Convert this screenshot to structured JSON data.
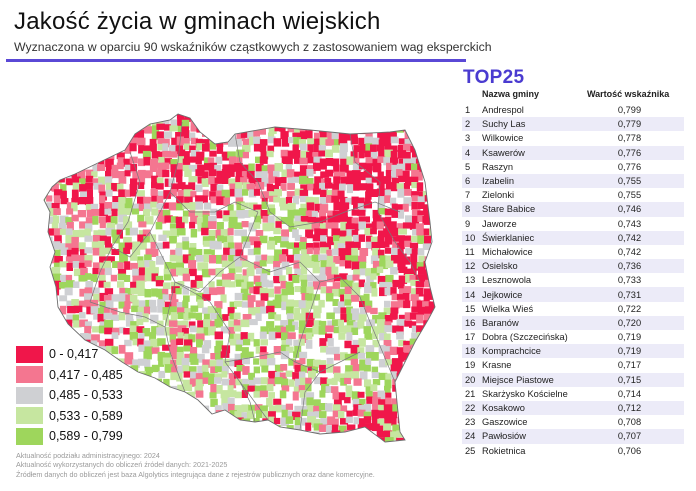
{
  "header": {
    "title": "Jakość życia w gminach wiejskich",
    "subtitle": "Wyznaczona w oparciu 90 wskaźników cząstkowych z zastosowaniem wag eksperckich",
    "rule_color": "#5a48d6"
  },
  "legend": {
    "items": [
      {
        "label": "0 - 0,417",
        "color": "#f0164a"
      },
      {
        "label": "0,417 - 0,485",
        "color": "#f47690"
      },
      {
        "label": "0,485 - 0,533",
        "color": "#cfd0d3"
      },
      {
        "label": "0,533 - 0,589",
        "color": "#c6e6a0"
      },
      {
        "label": "0,589 - 0,799",
        "color": "#9ed65c"
      }
    ]
  },
  "notes": [
    "Aktualność podziału administracyjnego: 2024",
    "Aktualność wykorzystanych do obliczeń źródeł danych: 2021-2025",
    "Źródłem danych do obliczeń jest baza Algolytics integrująca dane z rejestrów publicznych oraz dane komercyjne."
  ],
  "top": {
    "title": "TOP25",
    "col_name": "Nazwa gminy",
    "col_value": "Wartość wskaźnika",
    "rows": [
      {
        "rank": "1",
        "name": "Andrespol",
        "value": "0,799"
      },
      {
        "rank": "2",
        "name": "Suchy Las",
        "value": "0,779"
      },
      {
        "rank": "3",
        "name": "Wilkowice",
        "value": "0,778"
      },
      {
        "rank": "4",
        "name": "Ksawerów",
        "value": "0,776"
      },
      {
        "rank": "5",
        "name": "Raszyn",
        "value": "0,776"
      },
      {
        "rank": "6",
        "name": "Izabelin",
        "value": "0,755"
      },
      {
        "rank": "7",
        "name": "Zielonki",
        "value": "0,755"
      },
      {
        "rank": "8",
        "name": "Stare Babice",
        "value": "0,746"
      },
      {
        "rank": "9",
        "name": "Jaworze",
        "value": "0,743"
      },
      {
        "rank": "10",
        "name": "Świerklaniec",
        "value": "0,742"
      },
      {
        "rank": "11",
        "name": "Michałowice",
        "value": "0,742"
      },
      {
        "rank": "12",
        "name": "Osielsko",
        "value": "0,736"
      },
      {
        "rank": "13",
        "name": "Lesznowola",
        "value": "0,733"
      },
      {
        "rank": "14",
        "name": "Jejkowice",
        "value": "0,731"
      },
      {
        "rank": "15",
        "name": "Wielka Wieś",
        "value": "0,722"
      },
      {
        "rank": "16",
        "name": "Baranów",
        "value": "0,720"
      },
      {
        "rank": "17",
        "name": "Dobra (Szczecińska)",
        "value": "0,719"
      },
      {
        "rank": "18",
        "name": "Komprachcice",
        "value": "0,719"
      },
      {
        "rank": "19",
        "name": "Krasne",
        "value": "0,717"
      },
      {
        "rank": "20",
        "name": "Miejsce Piastowe",
        "value": "0,715"
      },
      {
        "rank": "21",
        "name": "Skarżysko Kościelne",
        "value": "0,714"
      },
      {
        "rank": "22",
        "name": "Kosakowo",
        "value": "0,712"
      },
      {
        "rank": "23",
        "name": "Gaszowice",
        "value": "0,708"
      },
      {
        "rank": "24",
        "name": "Pawłosiów",
        "value": "0,707"
      },
      {
        "rank": "25",
        "name": "Rokietnica",
        "value": "0,706"
      }
    ]
  },
  "chart_data": [
    {
      "type": "heatmap",
      "title": "Jakość życia w gminach wiejskich",
      "subtitle": "Wyznaczona w oparciu 90 wskaźników cząstkowych z zastosowaniem wag eksperckich",
      "description": "Choropleth map of rural municipalities (gminy wiejskie) in Poland; white = non-rural gminy",
      "classes": [
        {
          "range": [
            0,
            0.417
          ],
          "label": "0 - 0,417",
          "color": "#f0164a"
        },
        {
          "range": [
            0.417,
            0.485
          ],
          "label": "0,417 - 0,485",
          "color": "#f47690"
        },
        {
          "range": [
            0.485,
            0.533
          ],
          "label": "0,485 - 0,533",
          "color": "#cfd0d3"
        },
        {
          "range": [
            0.533,
            0.589
          ],
          "label": "0,533 - 0,589",
          "color": "#c6e6a0"
        },
        {
          "range": [
            0.589,
            0.799
          ],
          "label": "0,589 - 0,799",
          "color": "#9ed65c"
        }
      ],
      "regional_pattern": {
        "north_east": "predominantly 0 - 0,417",
        "east_border": "predominantly 0 - 0,417",
        "north_west": "mix of 0 - 0,417 and 0,417 - 0,485",
        "central_south": "predominantly 0,533 - 0,799",
        "south_east_tip": "0 - 0,417"
      },
      "legend_position": "bottom-left"
    },
    {
      "type": "table",
      "title": "TOP25",
      "columns": [
        "#",
        "Nazwa gminy",
        "Wartość wskaźnika"
      ],
      "categories": [
        "Andrespol",
        "Suchy Las",
        "Wilkowice",
        "Ksawerów",
        "Raszyn",
        "Izabelin",
        "Zielonki",
        "Stare Babice",
        "Jaworze",
        "Świerklaniec",
        "Michałowice",
        "Osielsko",
        "Lesznowola",
        "Jejkowice",
        "Wielka Wieś",
        "Baranów",
        "Dobra (Szczecińska)",
        "Komprachcice",
        "Krasne",
        "Miejsce Piastowe",
        "Skarżysko Kościelne",
        "Kosakowo",
        "Gaszowice",
        "Pawłosiów",
        "Rokietnica"
      ],
      "values": [
        0.799,
        0.779,
        0.778,
        0.776,
        0.776,
        0.755,
        0.755,
        0.746,
        0.743,
        0.742,
        0.742,
        0.736,
        0.733,
        0.731,
        0.722,
        0.72,
        0.719,
        0.719,
        0.717,
        0.715,
        0.714,
        0.712,
        0.708,
        0.707,
        0.706
      ]
    }
  ]
}
